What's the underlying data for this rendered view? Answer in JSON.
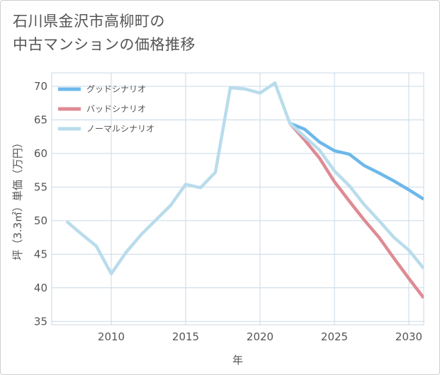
{
  "title_lines": [
    "石川県金沢市高柳町の",
    "中古マンションの価格推移"
  ],
  "colors": {
    "good": "#6cb8ea",
    "bad": "#de8b94",
    "normal": "#b9dceb",
    "grid": "#c8d9e6",
    "text": "#555555"
  },
  "chart_data": {
    "type": "line",
    "title": "石川県金沢市高柳町の中古マンションの価格推移",
    "xlabel": "年",
    "ylabel": "坪（3.3㎡）単価（万円）",
    "xlim": [
      2006,
      2031
    ],
    "ylim": [
      34.5,
      72
    ],
    "xticks": [
      2010,
      2015,
      2020,
      2025,
      2030
    ],
    "yticks": [
      35,
      40,
      45,
      50,
      55,
      60,
      65,
      70
    ],
    "grid": true,
    "legend_position": "top-left",
    "series": [
      {
        "name": "グッドシナリオ",
        "color_key": "good",
        "x": [
          2022,
          2023,
          2024,
          2025,
          2026,
          2027,
          2028,
          2029,
          2030,
          2031
        ],
        "y": [
          64.5,
          63.6,
          61.7,
          60.4,
          59.9,
          58.2,
          57.1,
          55.9,
          54.6,
          53.2
        ]
      },
      {
        "name": "バッドシナリオ",
        "color_key": "bad",
        "x": [
          2022,
          2023,
          2024,
          2025,
          2026,
          2027,
          2028,
          2029,
          2030,
          2031
        ],
        "y": [
          64.5,
          62.0,
          59.3,
          55.8,
          52.9,
          50.1,
          47.5,
          44.4,
          41.4,
          38.5
        ]
      },
      {
        "name": "ノーマルシナリオ",
        "color_key": "normal",
        "x": [
          2007,
          2008,
          2009,
          2010,
          2011,
          2012,
          2013,
          2014,
          2015,
          2016,
          2017,
          2018,
          2019,
          2020,
          2021,
          2022,
          2023,
          2024,
          2025,
          2026,
          2027,
          2028,
          2029,
          2030,
          2031
        ],
        "y": [
          49.9,
          48.0,
          46.2,
          42.1,
          45.3,
          47.9,
          50.1,
          52.3,
          55.4,
          54.9,
          57.2,
          69.8,
          69.6,
          69.0,
          70.5,
          64.5,
          62.5,
          60.5,
          57.4,
          55.2,
          52.4,
          50.0,
          47.5,
          45.6,
          42.9
        ]
      }
    ]
  }
}
